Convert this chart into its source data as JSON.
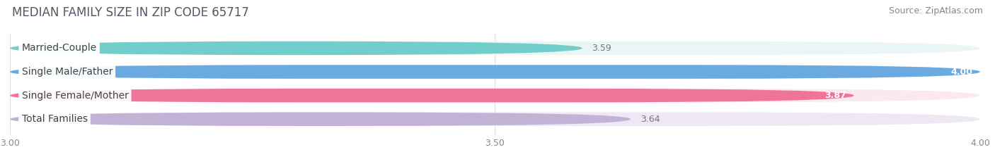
{
  "title": "MEDIAN FAMILY SIZE IN ZIP CODE 65717",
  "source": "Source: ZipAtlas.com",
  "categories": [
    "Married-Couple",
    "Single Male/Father",
    "Single Female/Mother",
    "Total Families"
  ],
  "values": [
    3.59,
    4.0,
    3.87,
    3.64
  ],
  "bar_colors": [
    "#72ceca",
    "#6aaae0",
    "#f07498",
    "#c4b2d6"
  ],
  "bar_bg_colors": [
    "#eaf6f5",
    "#e8f0fb",
    "#fce8ef",
    "#ede8f4"
  ],
  "value_inside": [
    false,
    true,
    true,
    false
  ],
  "value_colors_inside": [
    "#ffffff",
    "#ffffff",
    "#ffffff",
    "#ffffff"
  ],
  "value_colors_outside": [
    "#888888",
    "#888888",
    "#888888",
    "#888888"
  ],
  "xlim": [
    3.0,
    4.0
  ],
  "xticks": [
    3.0,
    3.5,
    4.0
  ],
  "xtick_labels": [
    "3.00",
    "3.50",
    "4.00"
  ],
  "bar_height": 0.58,
  "figsize": [
    14.06,
    2.33
  ],
  "dpi": 100,
  "title_fontsize": 12,
  "source_fontsize": 9,
  "label_fontsize": 10,
  "value_fontsize": 9,
  "tick_fontsize": 9,
  "bg_color": "#ffffff"
}
